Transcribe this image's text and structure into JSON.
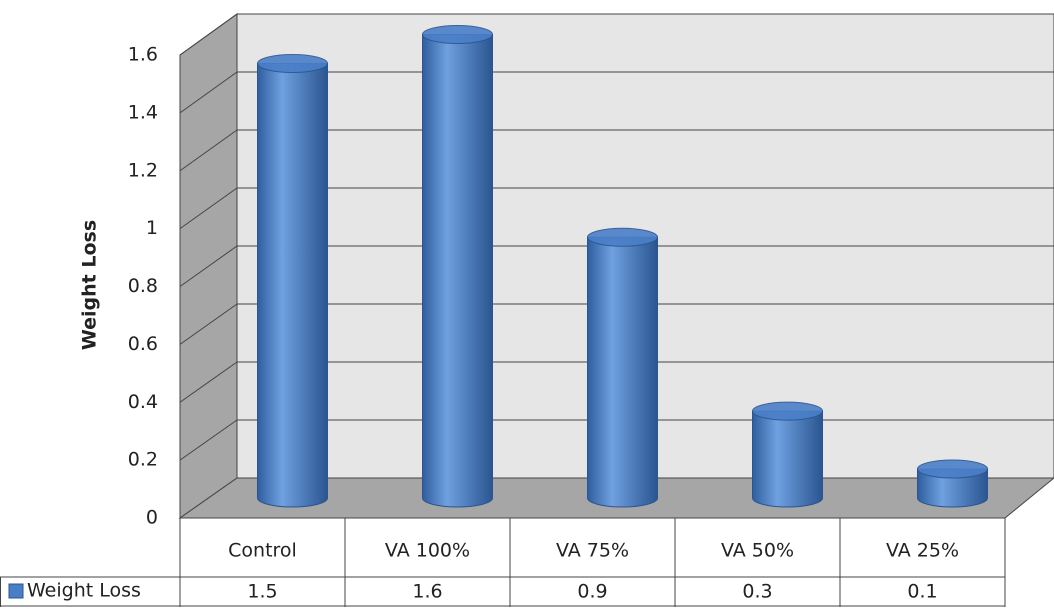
{
  "chart_data": {
    "type": "bar",
    "y_label": "Weight Loss",
    "categories": [
      "Control",
      "VA 100%",
      "VA 75%",
      "VA 50%",
      "VA 25%"
    ],
    "series": [
      {
        "name": "Weight Loss",
        "color": "#4a7fc8",
        "values": [
          1.5,
          1.6,
          0.9,
          0.3,
          0.1
        ]
      }
    ],
    "ylim": [
      0,
      1.6
    ],
    "yticks": [
      0,
      0.2,
      0.4,
      0.6,
      0.8,
      1,
      1.2,
      1.4,
      1.6
    ],
    "grid": true
  }
}
